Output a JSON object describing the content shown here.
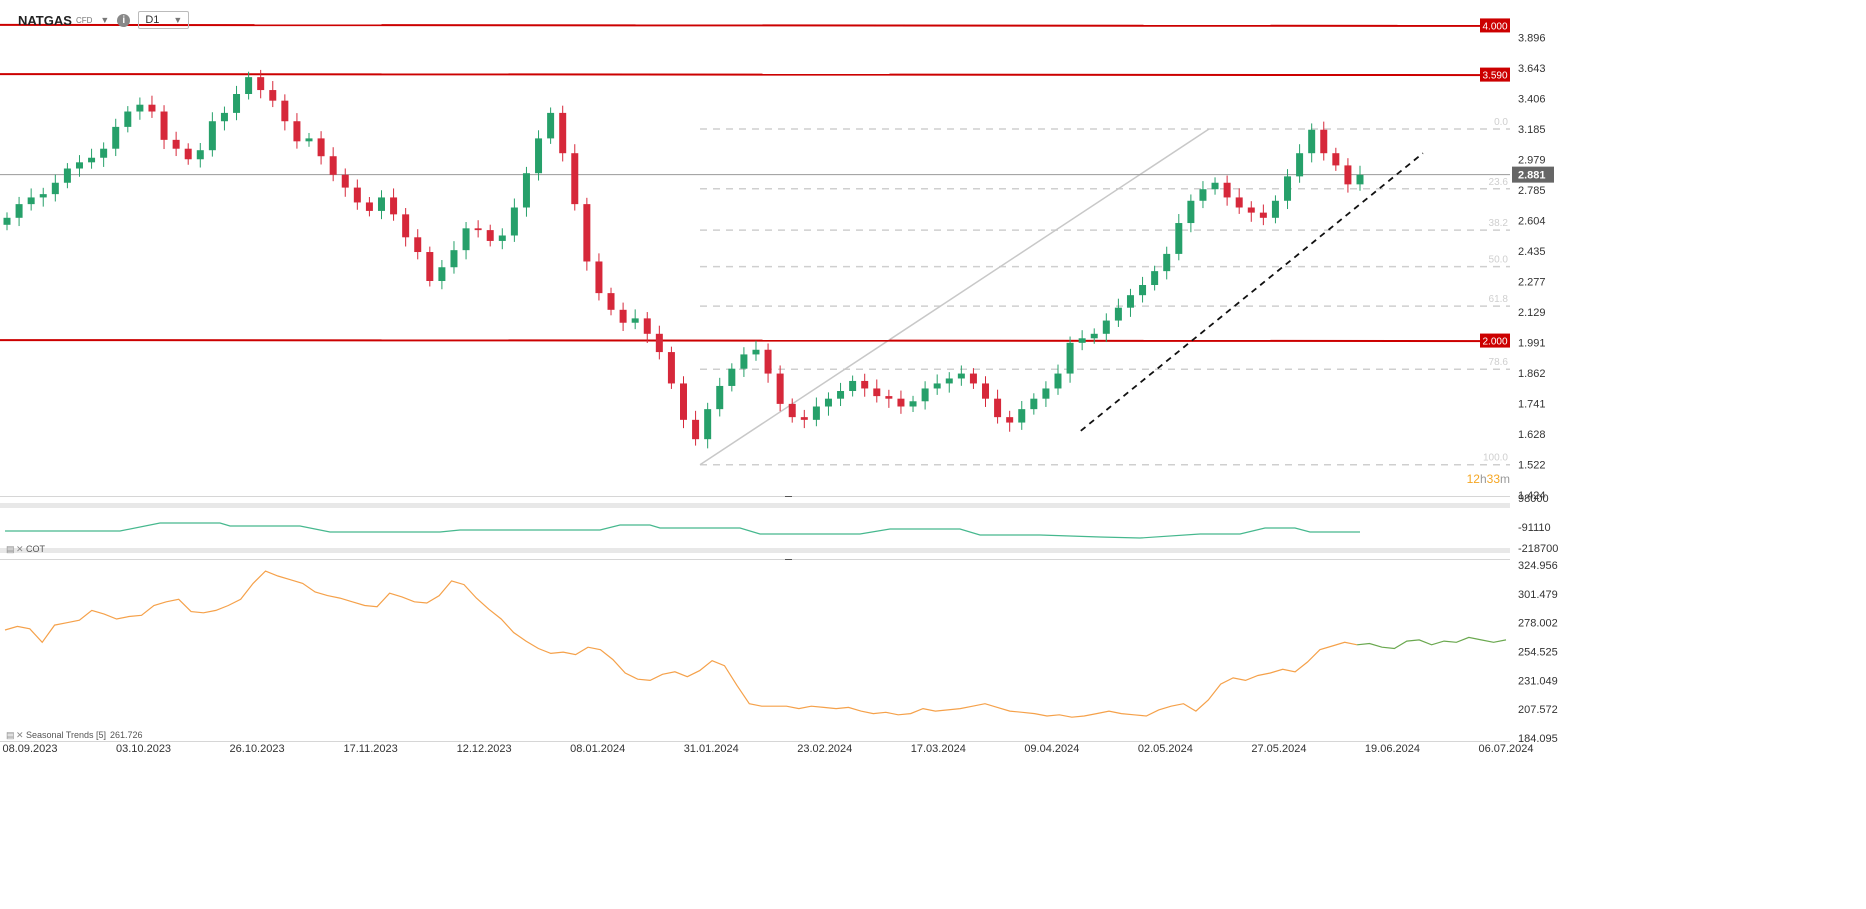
{
  "header": {
    "symbol": "NATGAS",
    "instrument_type": "CFD",
    "timeframe": "D1",
    "info_icon": "info-icon",
    "dropdown_icon": "chevron-down-icon"
  },
  "colors": {
    "up": "#26a06a",
    "down": "#d6283a",
    "resistance": "#cc0000",
    "seasonal": "#f5a14a",
    "seasonal_forecast": "#6aa84f",
    "cot": "#46b88e",
    "countdown": "#f5a623",
    "price_tag": "#666666"
  },
  "chart_data": [
    {
      "type": "candlestick",
      "title": "",
      "timeframe": "D1",
      "x": [
        "08.09.2023",
        "03.10.2023",
        "26.10.2023",
        "17.11.2023",
        "12.12.2023",
        "08.01.2024",
        "31.01.2024",
        "23.02.2024",
        "17.03.2024",
        "09.04.2024",
        "02.05.2024",
        "27.05.2024",
        "19.06.2024",
        "06.07.2024"
      ],
      "y_ticks": [
        "3.896",
        "3.643",
        "3.406",
        "3.185",
        "2.979",
        "2.785",
        "2.604",
        "2.435",
        "2.277",
        "2.129",
        "1.991",
        "1.862",
        "1.741",
        "1.628",
        "1.522",
        "1.424"
      ],
      "ylim": [
        1.424,
        3.96
      ],
      "current_price": "2.881",
      "horizontal_levels": [
        "4.000",
        "3.590",
        "2.000"
      ],
      "fibonacci": {
        "high": 3.185,
        "low": 1.522,
        "levels": [
          "0.0",
          "23.6",
          "38.2",
          "50.0",
          "61.8",
          "78.6",
          "100.0"
        ]
      },
      "trendline": {
        "from": [
          "10.04.2024",
          1.64
        ],
        "to": [
          "19.06.2024",
          3.02
        ]
      },
      "candle_closes": [
        2.62,
        2.7,
        2.74,
        2.76,
        2.83,
        2.92,
        2.96,
        2.99,
        3.05,
        3.2,
        3.31,
        3.36,
        3.31,
        3.11,
        3.05,
        2.98,
        3.04,
        3.24,
        3.3,
        3.44,
        3.57,
        3.47,
        3.39,
        3.24,
        3.1,
        3.12,
        3.0,
        2.88,
        2.8,
        2.71,
        2.66,
        2.74,
        2.64,
        2.51,
        2.43,
        2.28,
        2.35,
        2.44,
        2.56,
        2.55,
        2.49,
        2.52,
        2.68,
        2.89,
        3.12,
        3.3,
        3.02,
        2.7,
        2.38,
        2.22,
        2.14,
        2.08,
        2.1,
        2.03,
        1.95,
        1.82,
        1.68,
        1.61,
        1.72,
        1.81,
        1.88,
        1.94,
        1.96,
        1.86,
        1.74,
        1.69,
        1.68,
        1.73,
        1.76,
        1.79,
        1.83,
        1.8,
        1.77,
        1.76,
        1.73,
        1.75,
        1.8,
        1.82,
        1.84,
        1.86,
        1.82,
        1.76,
        1.69,
        1.67,
        1.72,
        1.76,
        1.8,
        1.86,
        1.99,
        2.01,
        2.03,
        2.09,
        2.15,
        2.21,
        2.26,
        2.33,
        2.42,
        2.59,
        2.72,
        2.79,
        2.83,
        2.74,
        2.68,
        2.65,
        2.62,
        2.72,
        2.87,
        3.02,
        3.18,
        3.02,
        2.94,
        2.82,
        2.88
      ],
      "countdown": {
        "hours": "12",
        "h": "h",
        "minutes": "33",
        "m": "m"
      }
    },
    {
      "type": "line",
      "title": "COT",
      "y_ticks": [
        "98000",
        "-91110",
        "-218700"
      ]
    },
    {
      "type": "line",
      "title": "Seasonal Trends",
      "param": "[5]",
      "value": "261.726",
      "y_ticks": [
        "324.956",
        "301.479",
        "278.002",
        "254.525",
        "231.049",
        "207.572",
        "184.095"
      ],
      "ylim": [
        184.095,
        324.956
      ],
      "values": [
        272,
        275,
        273,
        262,
        276,
        278,
        280,
        288,
        285,
        281,
        283,
        284,
        292,
        295,
        297,
        287,
        286,
        288,
        292,
        297,
        310,
        320,
        316,
        313,
        310,
        303,
        300,
        298,
        295,
        292,
        291,
        302,
        299,
        295,
        294,
        300,
        312,
        309,
        298,
        289,
        281,
        270,
        263,
        257,
        253,
        254,
        252,
        258,
        256,
        248,
        237,
        232,
        231,
        236,
        238,
        234,
        239,
        247,
        243,
        227,
        212,
        210,
        210,
        210,
        208,
        210,
        209,
        208,
        209,
        206,
        204,
        205,
        203,
        204,
        208,
        206,
        207,
        208,
        210,
        212,
        209,
        206,
        205,
        204,
        202,
        203,
        201,
        202,
        204,
        206,
        204,
        203,
        202,
        207,
        210,
        212,
        206,
        215,
        228,
        233,
        231,
        235,
        237,
        240,
        238,
        246,
        256,
        259,
        262,
        260,
        261,
        258,
        257,
        263,
        264,
        260,
        263,
        262,
        266,
        264,
        262,
        264
      ]
    }
  ]
}
